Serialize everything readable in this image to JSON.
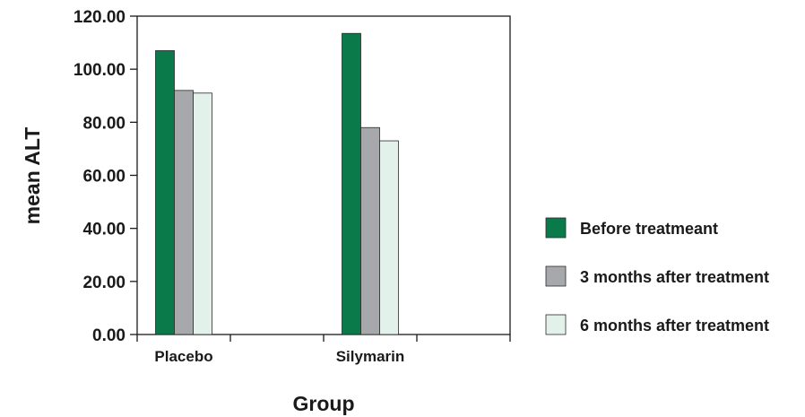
{
  "chart_data": {
    "type": "bar",
    "categories": [
      "Placebo",
      "Silymarin"
    ],
    "series": [
      {
        "name": "Before treatmeant",
        "values": [
          107.0,
          113.5
        ],
        "color": "#0b7a4b"
      },
      {
        "name": "3 months after treatment",
        "values": [
          92.0,
          78.0
        ],
        "color": "#a6a8ab"
      },
      {
        "name": "6 months after treatment",
        "values": [
          91.0,
          73.0
        ],
        "color": "#e2f1ea"
      }
    ],
    "xlabel": "Group",
    "ylabel": "mean ALT",
    "ylim": [
      0,
      120
    ],
    "yticks": [
      "0.00",
      "20.00",
      "40.00",
      "60.00",
      "80.00",
      "100.00",
      "120.00"
    ],
    "grid": false,
    "legend_position": "right"
  }
}
